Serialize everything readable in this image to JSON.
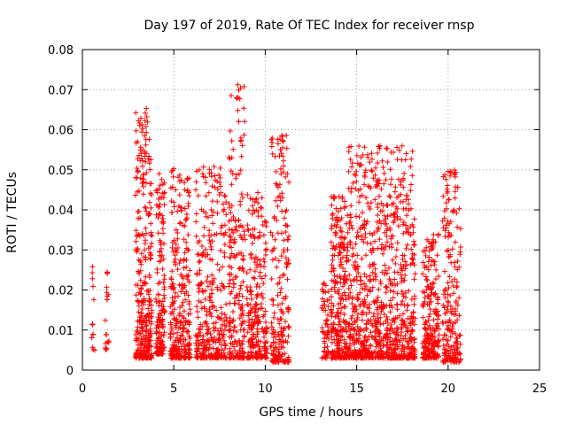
{
  "chart_data": {
    "type": "scatter",
    "title": "Day 197 of 2019, Rate Of TEC Index for receiver rnsp",
    "xlabel": "GPS time / hours",
    "ylabel": "ROTI / TECUs",
    "xlim": [
      0,
      25
    ],
    "ylim": [
      0,
      0.08
    ],
    "xticks": [
      0,
      5,
      10,
      15,
      20,
      25
    ],
    "xtick_labels": [
      "0",
      "5",
      "10",
      "15",
      "20",
      "25"
    ],
    "yticks": [
      0,
      0.01,
      0.02,
      0.03,
      0.04,
      0.05,
      0.06,
      0.07,
      0.08
    ],
    "ytick_labels": [
      "0",
      "0.01",
      "0.02",
      "0.03",
      "0.04",
      "0.05",
      "0.06",
      "0.07",
      "0.08"
    ],
    "grid": true,
    "marker": "+",
    "color": "#ff0000",
    "series": [
      {
        "name": "ROTI",
        "clusters": [
          {
            "x": [
              0.5,
              0.7
            ],
            "ymin": 0.005,
            "ymax": 0.026,
            "n": 10
          },
          {
            "x": [
              1.2,
              1.45
            ],
            "ymin": 0.005,
            "ymax": 0.025,
            "n": 18
          },
          {
            "x": [
              2.9,
              3.8
            ],
            "ymin": 0.003,
            "ymax": 0.066,
            "n": 320
          },
          {
            "x": [
              4.0,
              4.5
            ],
            "ymin": 0.004,
            "ymax": 0.049,
            "n": 160
          },
          {
            "x": [
              4.8,
              5.9
            ],
            "ymin": 0.003,
            "ymax": 0.05,
            "n": 280
          },
          {
            "x": [
              6.2,
              7.9
            ],
            "ymin": 0.003,
            "ymax": 0.051,
            "n": 330
          },
          {
            "x": [
              8.0,
              8.9
            ],
            "ymin": 0.003,
            "ymax": 0.071,
            "n": 200
          },
          {
            "x": [
              9.0,
              10.1
            ],
            "ymin": 0.003,
            "ymax": 0.044,
            "n": 240
          },
          {
            "x": [
              10.3,
              11.3
            ],
            "ymin": 0.002,
            "ymax": 0.059,
            "n": 200
          },
          {
            "x": [
              13.1,
              13.5
            ],
            "ymin": 0.003,
            "ymax": 0.023,
            "n": 60
          },
          {
            "x": [
              13.6,
              14.5
            ],
            "ymin": 0.003,
            "ymax": 0.044,
            "n": 260
          },
          {
            "x": [
              14.5,
              18.2
            ],
            "ymin": 0.003,
            "ymax": 0.056,
            "n": 900
          },
          {
            "x": [
              18.6,
              19.5
            ],
            "ymin": 0.003,
            "ymax": 0.034,
            "n": 220
          },
          {
            "x": [
              19.7,
              20.7
            ],
            "ymin": 0.002,
            "ymax": 0.05,
            "n": 200
          }
        ],
        "peaks": [
          [
            0.55,
            0.0258
          ],
          [
            0.55,
            0.0228
          ],
          [
            0.55,
            0.0113
          ],
          [
            1.35,
            0.0243
          ],
          [
            1.35,
            0.0176
          ],
          [
            3.5,
            0.0653
          ],
          [
            3.52,
            0.0632
          ],
          [
            3.5,
            0.0593
          ],
          [
            3.48,
            0.0575
          ],
          [
            3.45,
            0.052
          ],
          [
            3.3,
            0.0477
          ],
          [
            3.1,
            0.0447
          ],
          [
            4.2,
            0.049
          ],
          [
            4.1,
            0.0443
          ],
          [
            5.0,
            0.0503
          ],
          [
            5.1,
            0.045
          ],
          [
            5.6,
            0.045
          ],
          [
            7.2,
            0.0508
          ],
          [
            7.25,
            0.0485
          ],
          [
            7.1,
            0.0459
          ],
          [
            8.5,
            0.0712
          ],
          [
            8.55,
            0.0699
          ],
          [
            8.45,
            0.0678
          ],
          [
            8.5,
            0.0648
          ],
          [
            8.55,
            0.062
          ],
          [
            9.6,
            0.0443
          ],
          [
            9.5,
            0.0426
          ],
          [
            10.9,
            0.0585
          ],
          [
            11.0,
            0.0571
          ],
          [
            10.95,
            0.0555
          ],
          [
            11.0,
            0.0522
          ],
          [
            10.8,
            0.0435
          ],
          [
            13.75,
            0.0428
          ],
          [
            14.0,
            0.0396
          ],
          [
            15.5,
            0.0499
          ],
          [
            15.45,
            0.0482
          ],
          [
            15.2,
            0.0452
          ],
          [
            16.2,
            0.0558
          ],
          [
            16.25,
            0.0553
          ],
          [
            16.4,
            0.0522
          ],
          [
            16.45,
            0.0506
          ],
          [
            16.5,
            0.0491
          ],
          [
            16.6,
            0.0475
          ],
          [
            17.4,
            0.0462
          ],
          [
            17.1,
            0.0445
          ],
          [
            20.0,
            0.0496
          ],
          [
            19.95,
            0.0442
          ],
          [
            20.05,
            0.0425
          ],
          [
            19.2,
            0.0338
          ],
          [
            20.5,
            0.0357
          ]
        ]
      }
    ]
  }
}
